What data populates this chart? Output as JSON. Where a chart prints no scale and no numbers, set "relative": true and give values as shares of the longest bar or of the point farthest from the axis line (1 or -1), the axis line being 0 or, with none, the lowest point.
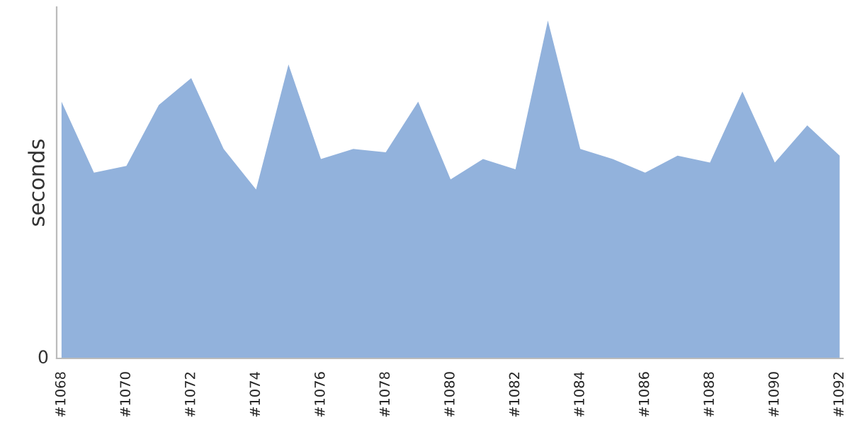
{
  "chart_data": {
    "type": "area",
    "relative": true,
    "ylabel": "seconds",
    "categories": [
      "#1068",
      null,
      "#1070",
      null,
      "#1072",
      null,
      "#1074",
      null,
      "#1076",
      null,
      "#1078",
      null,
      "#1080",
      null,
      "#1082",
      null,
      "#1084",
      null,
      "#1086",
      null,
      "#1088",
      null,
      "#1090",
      null,
      "#1092"
    ],
    "series": [
      {
        "color": "#92b2dc",
        "values": [
          0.76,
          0.55,
          0.57,
          0.75,
          0.83,
          0.62,
          0.5,
          0.87,
          0.59,
          0.62,
          0.61,
          0.76,
          0.53,
          0.59,
          0.56,
          1.0,
          0.62,
          0.59,
          0.55,
          0.6,
          0.58,
          0.79,
          0.58,
          0.69,
          0.6
        ]
      }
    ],
    "annotations": [
      "0"
    ],
    "grid": false,
    "legend": false
  }
}
